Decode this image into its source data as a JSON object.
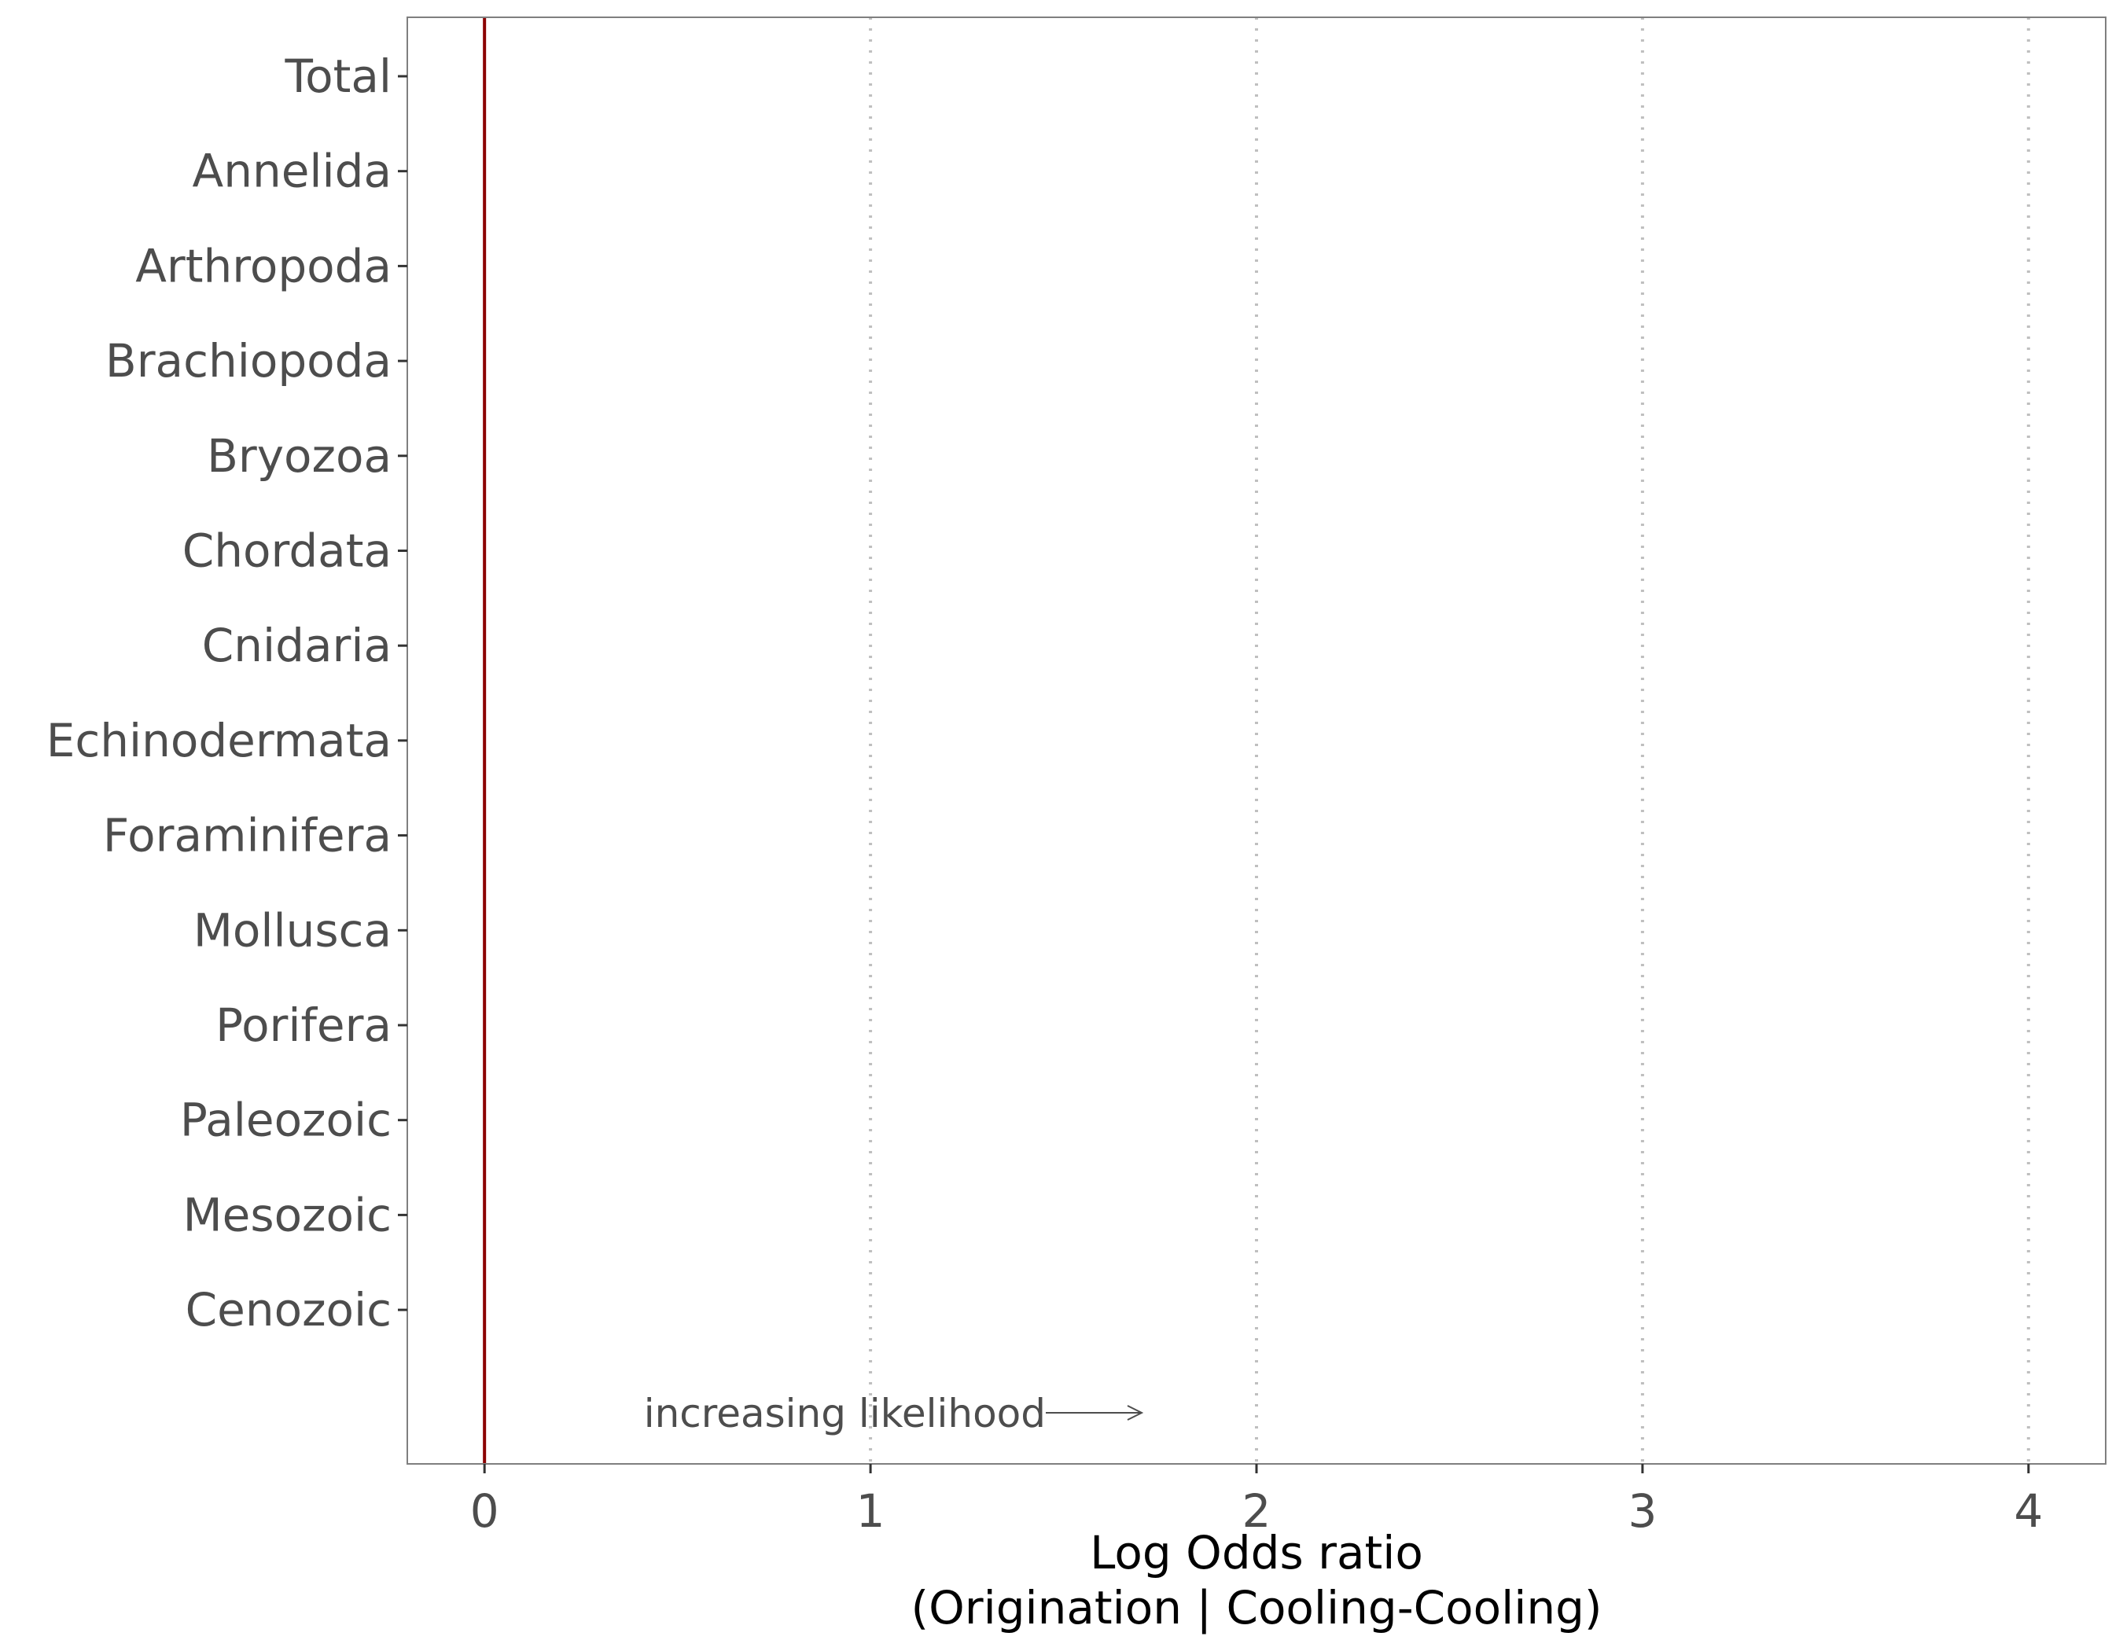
{
  "chart_data": {
    "type": "scatter",
    "categories": [
      "Total",
      "Annelida",
      "Arthropoda",
      "Brachiopoda",
      "Bryozoa",
      "Chordata",
      "Cnidaria",
      "Echinodermata",
      "Foraminifera",
      "Mollusca",
      "Porifera",
      "Paleozoic",
      "Mesozoic",
      "Cenozoic"
    ],
    "x_ticks": [
      0,
      1,
      2,
      3,
      4
    ],
    "xlim": [
      -0.2,
      4.2
    ],
    "xlabel_line1": "Log Odds ratio",
    "xlabel_line2": "(Origination | Cooling-Cooling)",
    "reference_line": {
      "x": 0,
      "color": "#8b0000"
    },
    "grid": "vertical dotted at x ticks",
    "annotation": {
      "text": "increasing likelihood",
      "arrow": "right"
    },
    "points": []
  },
  "colors": {
    "reference_line": "#8b0000",
    "grid": "#bfbfbf",
    "text": "#4d4d4d",
    "panel_border": "#7f7f7f"
  }
}
